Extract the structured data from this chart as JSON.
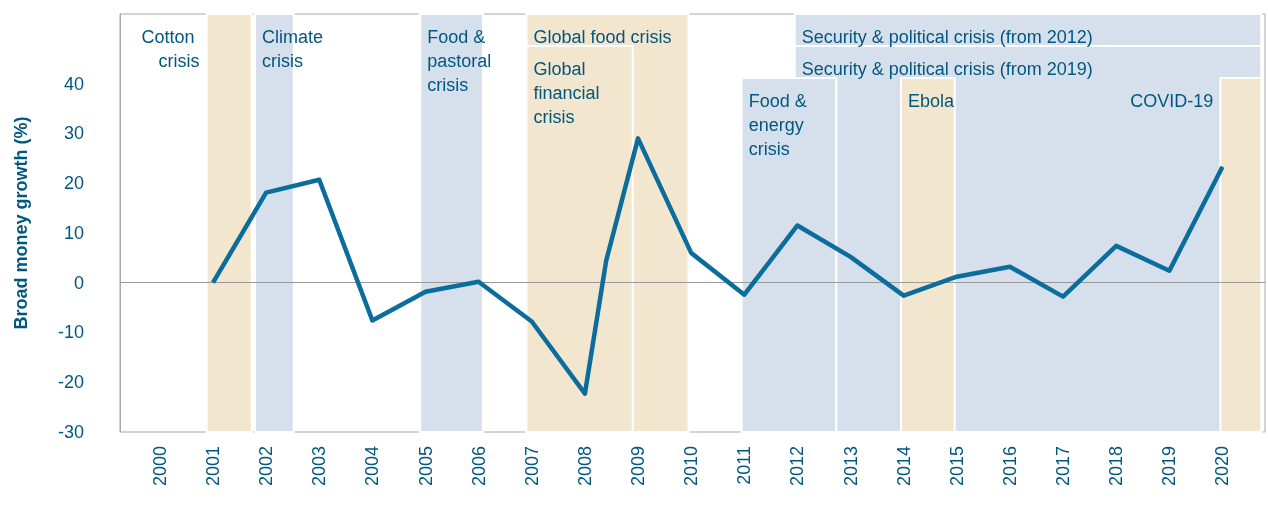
{
  "chart_data": {
    "type": "line",
    "ylabel": "Broad money growth (%)",
    "x": [
      2001,
      2002,
      2003,
      2004,
      2005,
      2006,
      2007,
      2008,
      2008.4,
      2009,
      2010,
      2011,
      2012,
      2013,
      2014,
      2015,
      2016,
      2017,
      2018,
      2019,
      2020
    ],
    "series": [
      {
        "color": "#0a6d9c",
        "values": [
          0,
          18.1,
          20.7,
          -7.6,
          -1.8,
          0.2,
          -7.8,
          -22.3,
          4.4,
          29,
          6,
          -2.4,
          11.5,
          5.2,
          -2.6,
          1.2,
          3.2,
          -2.8,
          7.4,
          2.4,
          23.3
        ]
      }
    ],
    "xlim": [
      1999.25,
      2020.8
    ],
    "xticks": [
      2000,
      2001,
      2002,
      2003,
      2004,
      2005,
      2006,
      2007,
      2008,
      2009,
      2010,
      2011,
      2012,
      2013,
      2014,
      2015,
      2016,
      2017,
      2018,
      2019,
      2020
    ],
    "ylim": [
      -30,
      54
    ],
    "yticks": [
      -30,
      -20,
      -10,
      0,
      10,
      20,
      30,
      40
    ],
    "grid": false,
    "marker": "none",
    "line_style": "solid",
    "ref_lines": [
      {
        "axis": "y",
        "value": 0,
        "color": "#999999"
      }
    ],
    "bands": [
      {
        "axis": "x",
        "from": 2000.88,
        "to": 2001.73,
        "label": "Cotton crisis",
        "color": "#f3e6cf"
      },
      {
        "axis": "x",
        "from": 2001.79,
        "to": 2002.52,
        "label": "Climate crisis",
        "color": "#d6e0ec"
      },
      {
        "axis": "x",
        "from": 2004.9,
        "to": 2006.08,
        "label": "Food & pastoral crisis",
        "color": "#d6e0ec"
      },
      {
        "axis": "x",
        "from": 2006.9,
        "to": 2009.95,
        "label": "Global food crisis",
        "color": "#f3e6cf"
      },
      {
        "axis": "x",
        "from": 2006.9,
        "to": 2008.9,
        "label": "Global financial crisis",
        "color": "#f3e6cf"
      },
      {
        "axis": "x",
        "from": 2011.95,
        "to": 2020.73,
        "label": "Security & political crisis (from 2012)",
        "color": "#d6e0ec"
      },
      {
        "axis": "x",
        "from": 2011.95,
        "to": 2020.73,
        "label": "Security & political crisis (from 2019)",
        "color": "#d6e0ec"
      },
      {
        "axis": "x",
        "from": 2010.95,
        "to": 2012.73,
        "label": "Food & energy crisis",
        "color": "#d6e0ec"
      },
      {
        "axis": "x",
        "from": 2013.95,
        "to": 2014.96,
        "label": "Ebola",
        "color": "#f3e6cf"
      },
      {
        "axis": "x",
        "from": 2019.96,
        "to": 2020.73,
        "label": "COVID-19",
        "color": "#f3e6cf"
      }
    ]
  }
}
